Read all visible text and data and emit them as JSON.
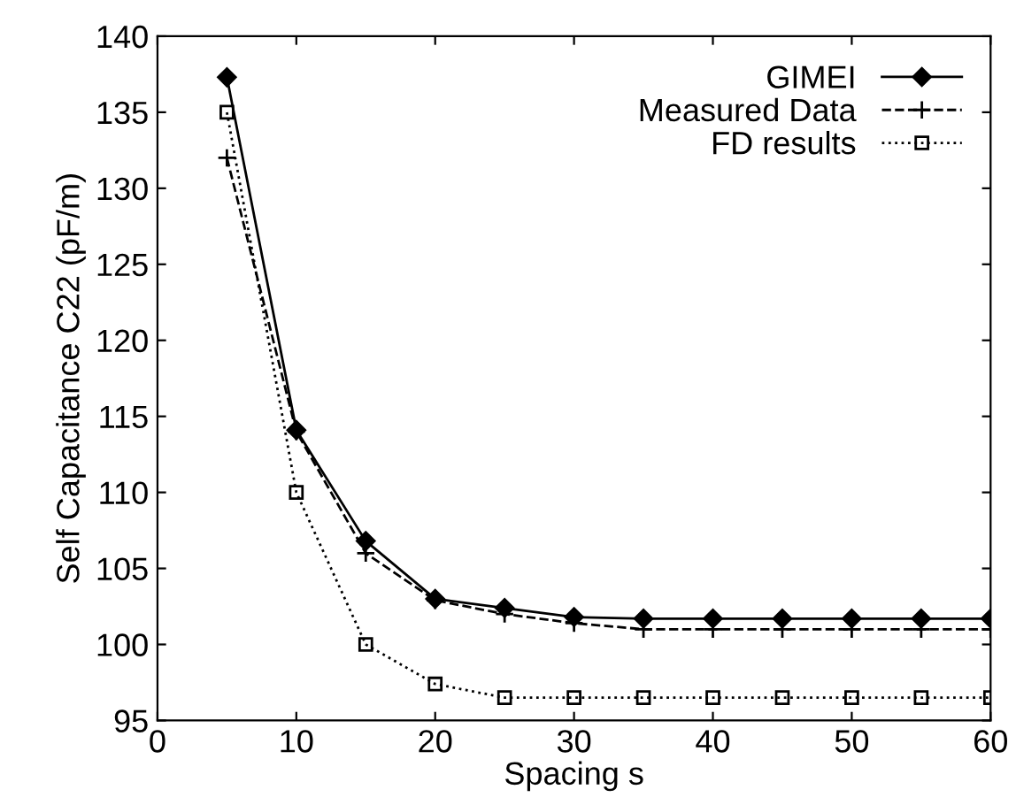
{
  "chart_data": {
    "type": "line",
    "xlabel": "Spacing s",
    "ylabel": "Self Capacitance C22 (pF/m)",
    "x": [
      5,
      10,
      15,
      20,
      25,
      30,
      35,
      40,
      45,
      50,
      55,
      60
    ],
    "series": [
      {
        "name": "GIMEI",
        "color": "#000000",
        "marker": "diamond",
        "line_style": "solid",
        "values": [
          137.3,
          114.1,
          106.8,
          103,
          102.4,
          101.8,
          101.7,
          101.7,
          101.7,
          101.7,
          101.7,
          101.7
        ]
      },
      {
        "name": "Measured Data",
        "color": "#000000",
        "marker": "cross",
        "line_style": "dashed",
        "values": [
          132,
          114,
          106,
          102.9,
          102,
          101.4,
          101,
          101,
          101,
          101,
          101,
          101
        ]
      },
      {
        "name": "FD results",
        "color": "#000000",
        "marker": "square",
        "line_style": "dotted",
        "values": [
          135,
          110,
          100,
          97.4,
          96.5,
          96.5,
          96.5,
          96.5,
          96.5,
          96.5,
          96.5,
          96.5
        ]
      }
    ],
    "xlim": [
      0,
      60
    ],
    "xticks": [
      0,
      10,
      20,
      30,
      40,
      50,
      60
    ],
    "ylim": [
      95,
      140
    ],
    "yticks": [
      95,
      100,
      105,
      110,
      115,
      120,
      125,
      130,
      135,
      140
    ],
    "grid": false,
    "legend": "top right"
  }
}
